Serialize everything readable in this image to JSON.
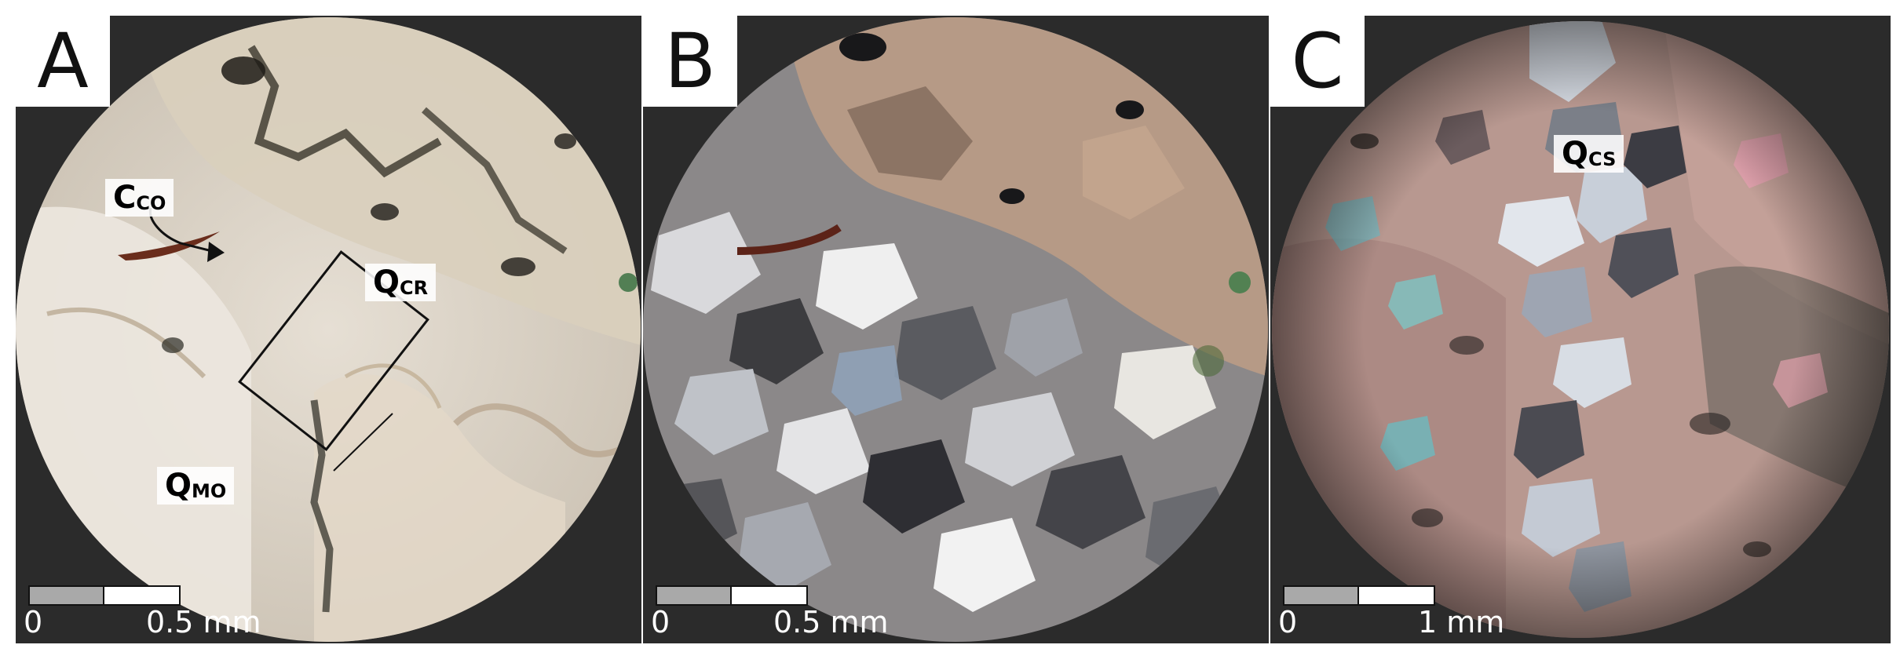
{
  "panels": [
    {
      "id": "A",
      "letter": "A",
      "labels": {
        "cco_main": "C",
        "cco_sub": "CO",
        "qcr_main": "Q",
        "qcr_sub": "CR",
        "qmo_main": "Q",
        "qmo_sub": "MO"
      },
      "scale": {
        "start": "0",
        "end": "0.5 mm"
      }
    },
    {
      "id": "B",
      "letter": "B",
      "scale": {
        "start": "0",
        "end": "0.5 mm"
      }
    },
    {
      "id": "C",
      "letter": "C",
      "labels": {
        "qcs_main": "Q",
        "qcs_sub": "CS"
      },
      "scale": {
        "start": "0",
        "end": "1 mm"
      }
    }
  ],
  "colors": {
    "panel_background": "#2b2b2b",
    "plane_light_base": "#d8d0c4",
    "cross_polar_base": "#8f8a8c",
    "annotation_box": "#111111"
  }
}
